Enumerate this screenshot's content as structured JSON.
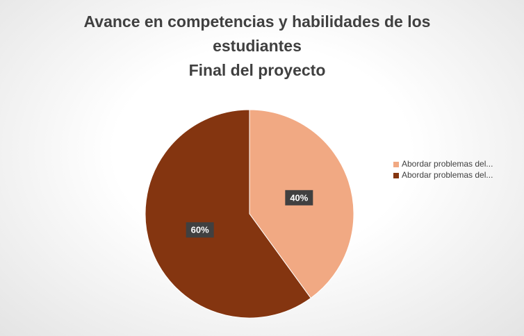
{
  "chart_data": {
    "type": "pie",
    "title": "Avance en competencias y habilidades de los estudiantes",
    "subtitle": "Final del proyecto",
    "categories": [
      "Abordar problemas del...",
      "Abordar problemas del..."
    ],
    "values": [
      40,
      60
    ],
    "value_labels": [
      "40%",
      "60%"
    ],
    "colors": [
      "#f1a983",
      "#843510"
    ],
    "legend": "right"
  }
}
